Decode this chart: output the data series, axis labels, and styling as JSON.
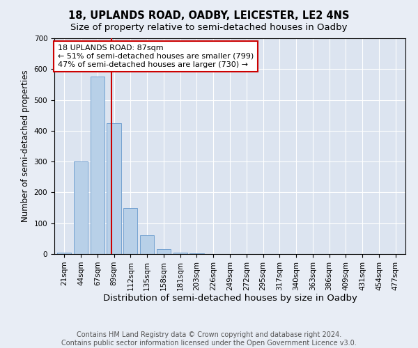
{
  "title": "18, UPLANDS ROAD, OADBY, LEICESTER, LE2 4NS",
  "subtitle": "Size of property relative to semi-detached houses in Oadby",
  "xlabel": "Distribution of semi-detached houses by size in Oadby",
  "ylabel": "Number of semi-detached properties",
  "categories": [
    "21sqm",
    "44sqm",
    "67sqm",
    "89sqm",
    "112sqm",
    "135sqm",
    "158sqm",
    "181sqm",
    "203sqm",
    "226sqm",
    "249sqm",
    "272sqm",
    "295sqm",
    "317sqm",
    "340sqm",
    "363sqm",
    "386sqm",
    "409sqm",
    "431sqm",
    "454sqm",
    "477sqm"
  ],
  "values": [
    5,
    300,
    575,
    425,
    150,
    60,
    15,
    5,
    2,
    1,
    0,
    0,
    1,
    0,
    0,
    0,
    0,
    0,
    0,
    0,
    0
  ],
  "bar_color": "#b8d0e8",
  "bar_edge_color": "#6699cc",
  "vline_color": "#cc0000",
  "annotation_box_color": "#ffffff",
  "annotation_box_edge": "#cc0000",
  "property_line_label": "18 UPLANDS ROAD: 87sqm",
  "smaller_pct": "51%",
  "smaller_count": 799,
  "larger_pct": "47%",
  "larger_count": 730,
  "background_color": "#e8edf5",
  "plot_bg_color": "#dce4f0",
  "grid_color": "#ffffff",
  "footer_line1": "Contains HM Land Registry data © Crown copyright and database right 2024.",
  "footer_line2": "Contains public sector information licensed under the Open Government Licence v3.0.",
  "ylim": [
    0,
    700
  ],
  "title_fontsize": 10.5,
  "subtitle_fontsize": 9.5,
  "xlabel_fontsize": 9.5,
  "ylabel_fontsize": 8.5,
  "tick_fontsize": 7.5,
  "annotation_fontsize": 8,
  "footer_fontsize": 7
}
